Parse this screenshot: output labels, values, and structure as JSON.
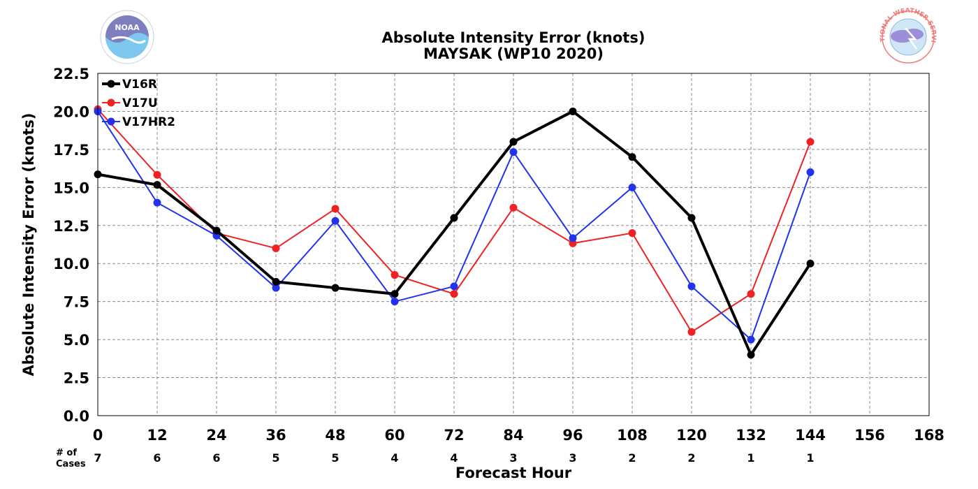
{
  "logos": {
    "left": {
      "name": "noaa-logo",
      "text": "NOAA"
    },
    "right": {
      "name": "nws-logo",
      "text": "NATIONAL WEATHER SERVICE"
    }
  },
  "chart_data": {
    "type": "line",
    "title": "Absolute Intensity Error (knots)",
    "subtitle": "MAYSAK (WP10 2020)",
    "xlabel": "Forecast Hour",
    "ylabel": "Absolute Intensity Error (knots)",
    "xlim": [
      0,
      168
    ],
    "ylim": [
      0,
      22.5
    ],
    "x_ticks": [
      0,
      12,
      24,
      36,
      48,
      60,
      72,
      84,
      96,
      108,
      120,
      132,
      144,
      156,
      168
    ],
    "y_ticks": [
      0.0,
      2.5,
      5.0,
      7.5,
      10.0,
      12.5,
      15.0,
      17.5,
      20.0,
      22.5
    ],
    "grid": true,
    "legend_position": "top-left",
    "series": [
      {
        "name": "V16R",
        "color": "#000000",
        "line_width": 4,
        "x": [
          0,
          12,
          24,
          36,
          48,
          60,
          72,
          84,
          96,
          108,
          120,
          132,
          144
        ],
        "values": [
          15.86,
          15.17,
          12.17,
          8.8,
          8.4,
          8.0,
          13.0,
          18.0,
          20.0,
          17.0,
          13.0,
          4.0,
          10.0
        ]
      },
      {
        "name": "V17U",
        "color": "#ee2222",
        "line_width": 2,
        "x": [
          0,
          12,
          24,
          36,
          48,
          60,
          72,
          84,
          96,
          108,
          120,
          132,
          144
        ],
        "values": [
          20.14,
          15.83,
          12.0,
          11.0,
          13.6,
          9.25,
          8.0,
          13.67,
          11.33,
          12.0,
          5.5,
          8.0,
          18.0
        ]
      },
      {
        "name": "V17HR2",
        "color": "#2233ee",
        "line_width": 2,
        "x": [
          0,
          12,
          24,
          36,
          48,
          60,
          72,
          84,
          96,
          108,
          120,
          132,
          144
        ],
        "values": [
          20.0,
          14.0,
          11.83,
          8.4,
          12.8,
          7.5,
          8.5,
          17.33,
          11.67,
          15.0,
          8.5,
          5.0,
          16.0
        ]
      }
    ],
    "cases": {
      "label_line1": "# of",
      "label_line2": "Cases",
      "x": [
        0,
        12,
        24,
        36,
        48,
        60,
        72,
        84,
        96,
        108,
        120,
        132,
        144
      ],
      "values": [
        "7",
        "6",
        "6",
        "5",
        "5",
        "4",
        "4",
        "3",
        "3",
        "2",
        "2",
        "1",
        "1"
      ]
    }
  }
}
